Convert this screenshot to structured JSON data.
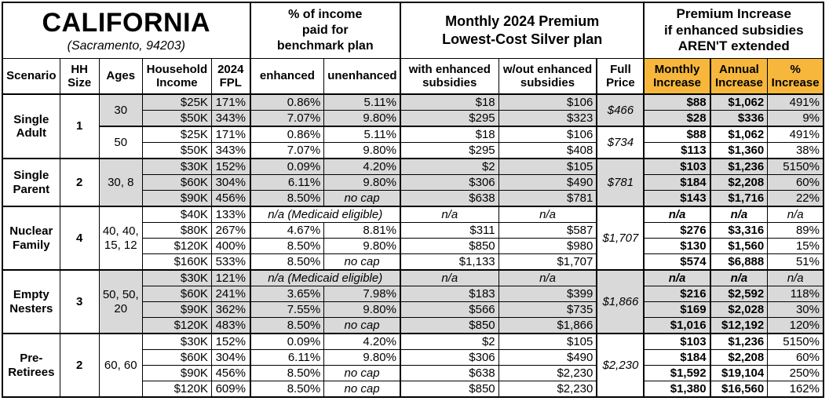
{
  "title": {
    "region": "CALIFORNIA",
    "location": "(Sacramento, 94203)"
  },
  "banners": {
    "benchmark": "% of income\npaid for\nbenchmark plan",
    "premium": "Monthly 2024 Premium\nLowest-Cost Silver plan",
    "increase": "Premium Increase\nif enhanced subsidies\nAREN'T extended"
  },
  "columns": [
    "Scenario",
    "HH\nSize",
    "Ages",
    "Household\nIncome",
    "2024\nFPL",
    "enhanced",
    "unenhanced",
    "with enhanced\nsubsidies",
    "w/out enhanced\nsubsidies",
    "Full\nPrice",
    "Monthly\nIncrease",
    "Annual\nIncrease",
    "%\nIncrease"
  ],
  "colors": {
    "accent_orange": "#F6B73C",
    "row_gray": "#D9D9D9",
    "grid": "#000000"
  },
  "groups": [
    {
      "scenario": "Single\nAdult",
      "hh_size": "1",
      "subgroups": [
        {
          "ages": "30",
          "shaded": true,
          "full_price": "$466",
          "rows": [
            {
              "income": "$25K",
              "fpl": "171%",
              "enhanced": "0.86%",
              "unenhanced": "5.11%",
              "with_sub": "$18",
              "without_sub": "$106",
              "monthly": "$88",
              "annual": "$1,062",
              "pct": "491%"
            },
            {
              "income": "$50K",
              "fpl": "343%",
              "enhanced": "7.07%",
              "unenhanced": "9.80%",
              "with_sub": "$295",
              "without_sub": "$323",
              "monthly": "$28",
              "annual": "$336",
              "pct": "9%"
            }
          ]
        },
        {
          "ages": "50",
          "shaded": false,
          "full_price": "$734",
          "rows": [
            {
              "income": "$25K",
              "fpl": "171%",
              "enhanced": "0.86%",
              "unenhanced": "5.11%",
              "with_sub": "$18",
              "without_sub": "$106",
              "monthly": "$88",
              "annual": "$1,062",
              "pct": "491%"
            },
            {
              "income": "$50K",
              "fpl": "343%",
              "enhanced": "7.07%",
              "unenhanced": "9.80%",
              "with_sub": "$295",
              "without_sub": "$408",
              "monthly": "$113",
              "annual": "$1,360",
              "pct": "38%"
            }
          ]
        }
      ]
    },
    {
      "scenario": "Single\nParent",
      "hh_size": "2",
      "subgroups": [
        {
          "ages": "30, 8",
          "shaded": true,
          "full_price": "$781",
          "rows": [
            {
              "income": "$30K",
              "fpl": "152%",
              "enhanced": "0.09%",
              "unenhanced": "4.20%",
              "with_sub": "$2",
              "without_sub": "$105",
              "monthly": "$103",
              "annual": "$1,236",
              "pct": "5150%"
            },
            {
              "income": "$60K",
              "fpl": "304%",
              "enhanced": "6.11%",
              "unenhanced": "9.80%",
              "with_sub": "$306",
              "without_sub": "$490",
              "monthly": "$184",
              "annual": "$2,208",
              "pct": "60%"
            },
            {
              "income": "$90K",
              "fpl": "456%",
              "enhanced": "8.50%",
              "unenhanced": "no cap",
              "with_sub": "$638",
              "without_sub": "$781",
              "monthly": "$143",
              "annual": "$1,716",
              "pct": "22%"
            }
          ]
        }
      ]
    },
    {
      "scenario": "Nuclear\nFamily",
      "hh_size": "4",
      "subgroups": [
        {
          "ages": "40, 40,\n15, 12",
          "shaded": false,
          "full_price": "$1,707",
          "rows": [
            {
              "income": "$40K",
              "fpl": "133%",
              "medicaid": "n/a (Medicaid eligible)",
              "with_sub": "n/a",
              "without_sub": "n/a",
              "monthly": "n/a",
              "annual": "n/a",
              "pct": "n/a"
            },
            {
              "income": "$80K",
              "fpl": "267%",
              "enhanced": "4.67%",
              "unenhanced": "8.81%",
              "with_sub": "$311",
              "without_sub": "$587",
              "monthly": "$276",
              "annual": "$3,316",
              "pct": "89%"
            },
            {
              "income": "$120K",
              "fpl": "400%",
              "enhanced": "8.50%",
              "unenhanced": "9.80%",
              "with_sub": "$850",
              "without_sub": "$980",
              "monthly": "$130",
              "annual": "$1,560",
              "pct": "15%"
            },
            {
              "income": "$160K",
              "fpl": "533%",
              "enhanced": "8.50%",
              "unenhanced": "no cap",
              "with_sub": "$1,133",
              "without_sub": "$1,707",
              "monthly": "$574",
              "annual": "$6,888",
              "pct": "51%"
            }
          ]
        }
      ]
    },
    {
      "scenario": "Empty\nNesters",
      "hh_size": "3",
      "subgroups": [
        {
          "ages": "50, 50,\n20",
          "shaded": true,
          "full_price": "$1,866",
          "rows": [
            {
              "income": "$30K",
              "fpl": "121%",
              "medicaid": "n/a (Medicaid eligible)",
              "with_sub": "n/a",
              "without_sub": "n/a",
              "monthly": "n/a",
              "annual": "n/a",
              "pct": "n/a"
            },
            {
              "income": "$60K",
              "fpl": "241%",
              "enhanced": "3.65%",
              "unenhanced": "7.98%",
              "with_sub": "$183",
              "without_sub": "$399",
              "monthly": "$216",
              "annual": "$2,592",
              "pct": "118%"
            },
            {
              "income": "$90K",
              "fpl": "362%",
              "enhanced": "7.55%",
              "unenhanced": "9.80%",
              "with_sub": "$566",
              "without_sub": "$735",
              "monthly": "$169",
              "annual": "$2,028",
              "pct": "30%"
            },
            {
              "income": "$120K",
              "fpl": "483%",
              "enhanced": "8.50%",
              "unenhanced": "no cap",
              "with_sub": "$850",
              "without_sub": "$1,866",
              "monthly": "$1,016",
              "annual": "$12,192",
              "pct": "120%"
            }
          ]
        }
      ]
    },
    {
      "scenario": "Pre-\nRetirees",
      "hh_size": "2",
      "subgroups": [
        {
          "ages": "60, 60",
          "shaded": false,
          "full_price": "$2,230",
          "rows": [
            {
              "income": "$30K",
              "fpl": "152%",
              "enhanced": "0.09%",
              "unenhanced": "4.20%",
              "with_sub": "$2",
              "without_sub": "$105",
              "monthly": "$103",
              "annual": "$1,236",
              "pct": "5150%"
            },
            {
              "income": "$60K",
              "fpl": "304%",
              "enhanced": "6.11%",
              "unenhanced": "9.80%",
              "with_sub": "$306",
              "without_sub": "$490",
              "monthly": "$184",
              "annual": "$2,208",
              "pct": "60%"
            },
            {
              "income": "$90K",
              "fpl": "456%",
              "enhanced": "8.50%",
              "unenhanced": "no cap",
              "with_sub": "$638",
              "without_sub": "$2,230",
              "monthly": "$1,592",
              "annual": "$19,104",
              "pct": "250%"
            },
            {
              "income": "$120K",
              "fpl": "609%",
              "enhanced": "8.50%",
              "unenhanced": "no cap",
              "with_sub": "$850",
              "without_sub": "$2,230",
              "monthly": "$1,380",
              "annual": "$16,560",
              "pct": "162%"
            }
          ]
        }
      ]
    }
  ]
}
